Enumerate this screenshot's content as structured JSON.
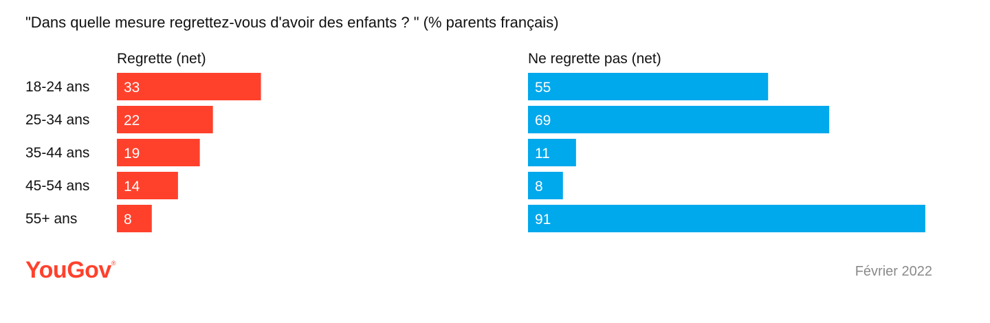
{
  "chart_data": {
    "type": "bar",
    "title": "\"Dans quelle mesure regrettez-vous d'avoir des enfants ? \" (% parents français)",
    "categories": [
      "18-24 ans",
      "25-34 ans",
      "35-44 ans",
      "45-54 ans",
      "55+ ans"
    ],
    "series": [
      {
        "name": "Regrette (net)",
        "values": [
          33,
          22,
          19,
          14,
          8
        ],
        "color": "#ff412c"
      },
      {
        "name": "Ne regrette pas (net)",
        "values": [
          55,
          69,
          11,
          8,
          91
        ],
        "color": "#00a8ec"
      }
    ],
    "orientation": "horizontal",
    "grid": false
  },
  "footer": {
    "brand": "YouGov",
    "date": "Février 2022"
  }
}
